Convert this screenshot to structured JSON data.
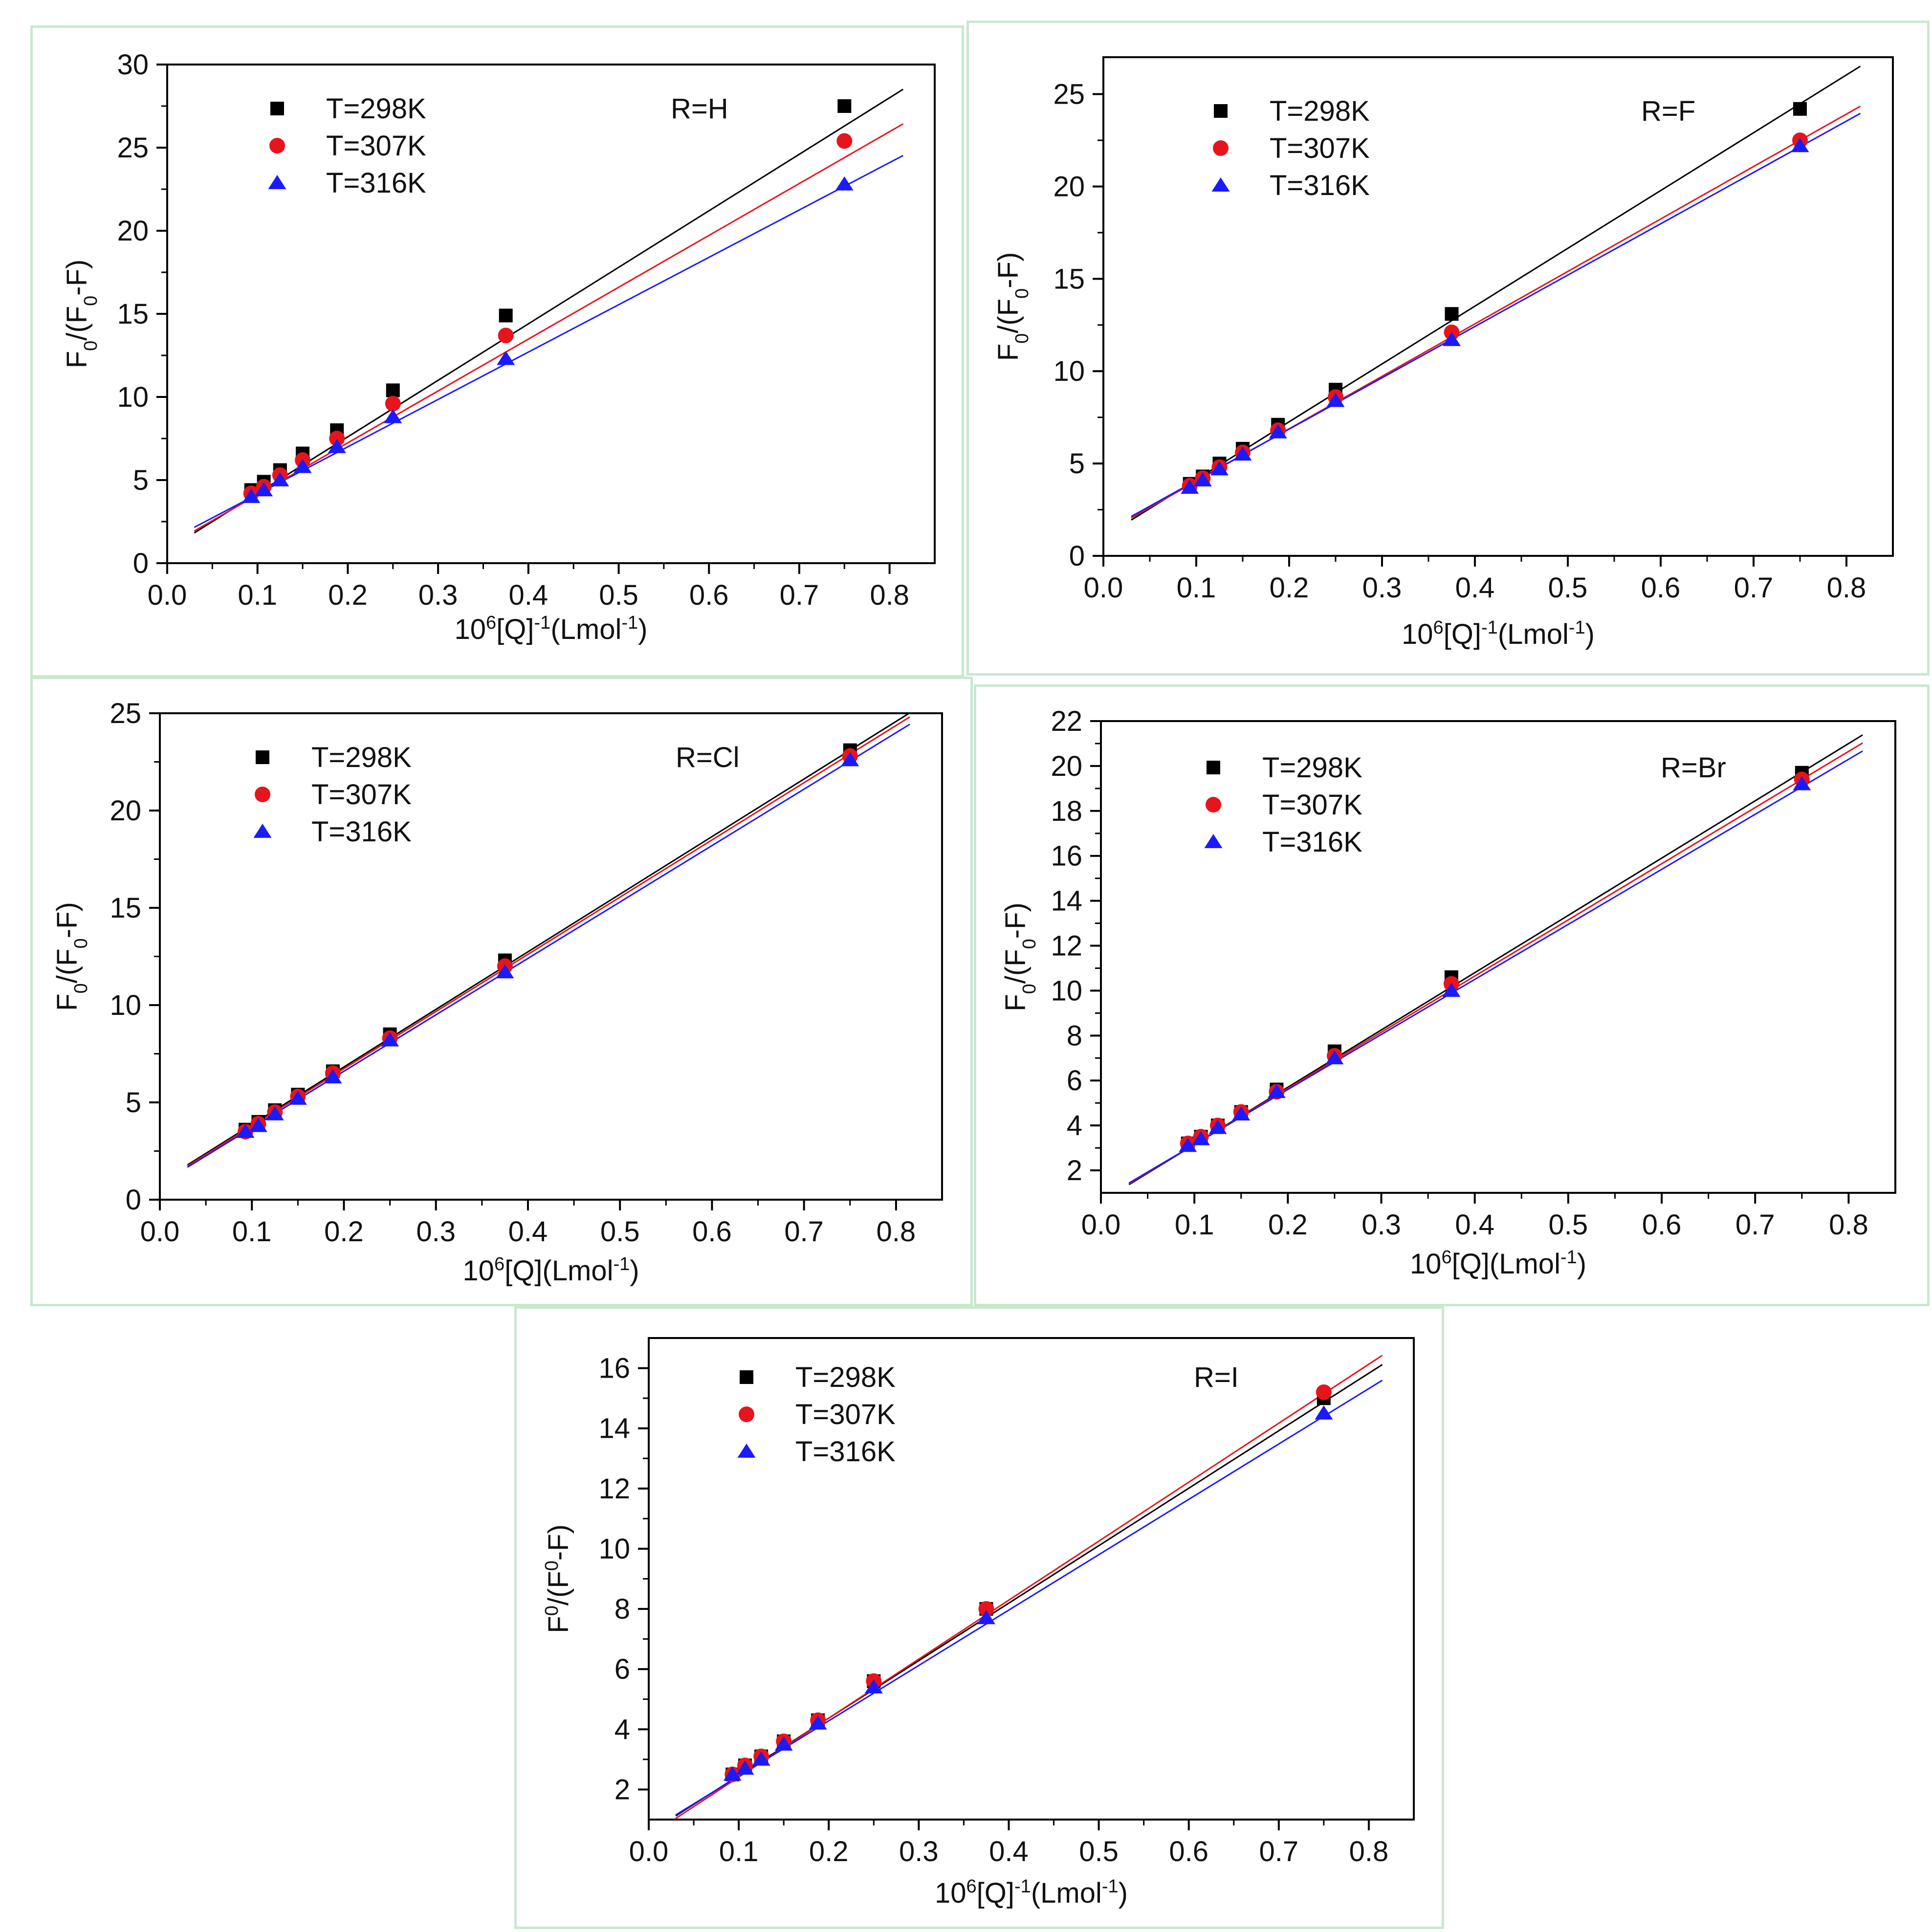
{
  "chart_data": [
    {
      "type": "scatter",
      "annotation": "R=H",
      "xlabel": "10⁶[Q]⁻¹(Lmol⁻¹)",
      "ylabel": "F₀/(F₀-F)",
      "xlim": [
        0,
        0.85
      ],
      "ylim": [
        0,
        30
      ],
      "xticks": [
        0.0,
        0.1,
        0.2,
        0.3,
        0.4,
        0.5,
        0.6,
        0.7,
        0.8
      ],
      "xticklabels": [
        "0.0",
        "0.1",
        "0.2",
        "0.3",
        "0.4",
        "0.5",
        "0.6",
        "0.7",
        "0.8"
      ],
      "yticks": [
        0,
        5,
        10,
        15,
        20,
        25,
        30
      ],
      "yticklabels": [
        "0",
        "5",
        "10",
        "15",
        "20",
        "25",
        "30"
      ],
      "x": [
        0.093,
        0.107,
        0.125,
        0.15,
        0.188,
        0.25,
        0.375,
        0.75
      ],
      "fit_range": [
        0.03,
        0.815
      ],
      "series": [
        {
          "name": "T=298K",
          "color": "#000000",
          "marker": "square",
          "values": [
            4.4,
            4.9,
            5.6,
            6.6,
            8.0,
            10.4,
            14.9,
            27.5
          ],
          "fit": [
            0.8,
            34.0
          ]
        },
        {
          "name": "T=307K",
          "color": "#e8141c",
          "marker": "circle",
          "values": [
            4.2,
            4.6,
            5.3,
            6.2,
            7.5,
            9.6,
            13.7,
            25.4
          ],
          "fit": [
            1.0,
            31.2
          ]
        },
        {
          "name": "T=316K",
          "color": "#1a1aff",
          "marker": "triangle",
          "values": [
            4.0,
            4.4,
            5.0,
            5.8,
            7.0,
            8.8,
            12.3,
            22.8
          ],
          "fit": [
            1.3,
            28.5
          ]
        }
      ]
    },
    {
      "type": "scatter",
      "annotation": "R=F",
      "xlabel": "10⁶[Q]⁻¹(Lmol⁻¹)",
      "ylabel": "F₀/(F₀-F)",
      "xlim": [
        0,
        0.85
      ],
      "ylim": [
        0,
        27
      ],
      "xticks": [
        0.0,
        0.1,
        0.2,
        0.3,
        0.4,
        0.5,
        0.6,
        0.7,
        0.8
      ],
      "xticklabels": [
        "0.0",
        "0.1",
        "0.2",
        "0.3",
        "0.4",
        "0.5",
        "0.6",
        "0.7",
        "0.8"
      ],
      "yticks": [
        0,
        5,
        10,
        15,
        20,
        25
      ],
      "yticklabels": [
        "0",
        "5",
        "10",
        "15",
        "20",
        "25"
      ],
      "x": [
        0.093,
        0.107,
        0.125,
        0.15,
        0.188,
        0.25,
        0.375,
        0.75
      ],
      "fit_range": [
        0.03,
        0.815
      ],
      "series": [
        {
          "name": "T=298K",
          "color": "#000000",
          "marker": "square",
          "values": [
            3.9,
            4.3,
            5.0,
            5.8,
            7.1,
            9.0,
            13.1,
            24.2
          ],
          "fit": [
            1.0,
            31.3
          ]
        },
        {
          "name": "T=307K",
          "color": "#e8141c",
          "marker": "circle",
          "values": [
            3.8,
            4.2,
            4.8,
            5.6,
            6.8,
            8.6,
            12.1,
            22.5
          ],
          "fit": [
            1.2,
            28.4
          ]
        },
        {
          "name": "T=316K",
          "color": "#1a1aff",
          "marker": "triangle",
          "values": [
            3.7,
            4.1,
            4.7,
            5.5,
            6.7,
            8.4,
            11.7,
            22.2
          ],
          "fit": [
            1.3,
            27.8
          ]
        }
      ]
    },
    {
      "type": "scatter",
      "annotation": "R=Cl",
      "xlabel": "10⁶[Q](Lmol⁻¹)",
      "ylabel": "F₀/(F₀-F)",
      "xlim": [
        0,
        0.85
      ],
      "ylim": [
        0,
        25
      ],
      "xticks": [
        0.0,
        0.1,
        0.2,
        0.3,
        0.4,
        0.5,
        0.6,
        0.7,
        0.8
      ],
      "xticklabels": [
        "0.0",
        "0.1",
        "0.2",
        "0.3",
        "0.4",
        "0.5",
        "0.6",
        "0.7",
        "0.8"
      ],
      "yticks": [
        0,
        5,
        10,
        15,
        20,
        25
      ],
      "yticklabels": [
        "0",
        "5",
        "10",
        "15",
        "20",
        "25"
      ],
      "x": [
        0.093,
        0.107,
        0.125,
        0.15,
        0.188,
        0.25,
        0.375,
        0.75
      ],
      "fit_range": [
        0.03,
        0.815
      ],
      "series": [
        {
          "name": "T=298K",
          "color": "#000000",
          "marker": "square",
          "values": [
            3.6,
            4.0,
            4.6,
            5.4,
            6.6,
            8.5,
            12.3,
            23.1
          ],
          "fit": [
            0.9,
            29.6
          ]
        },
        {
          "name": "T=307K",
          "color": "#e8141c",
          "marker": "circle",
          "values": [
            3.5,
            3.9,
            4.5,
            5.3,
            6.5,
            8.3,
            12.0,
            22.8
          ],
          "fit": [
            0.85,
            29.4
          ]
        },
        {
          "name": "T=316K",
          "color": "#1a1aff",
          "marker": "triangle",
          "values": [
            3.5,
            3.8,
            4.4,
            5.2,
            6.3,
            8.2,
            11.7,
            22.6
          ],
          "fit": [
            0.8,
            29.0
          ]
        }
      ]
    },
    {
      "type": "scatter",
      "annotation": "R=Br",
      "xlabel": "10⁶[Q](Lmol⁻¹)",
      "ylabel": "F₀/(F₀-F)",
      "xlim": [
        0,
        0.85
      ],
      "ylim": [
        1,
        22
      ],
      "xticks": [
        0.0,
        0.1,
        0.2,
        0.3,
        0.4,
        0.5,
        0.6,
        0.7,
        0.8
      ],
      "xticklabels": [
        "0.0",
        "0.1",
        "0.2",
        "0.3",
        "0.4",
        "0.5",
        "0.6",
        "0.7",
        "0.8"
      ],
      "yticks": [
        2,
        4,
        6,
        8,
        10,
        12,
        14,
        16,
        18,
        20,
        22
      ],
      "yticklabels": [
        "2",
        "4",
        "6",
        "8",
        "10",
        "12",
        "14",
        "16",
        "18",
        "20",
        "22"
      ],
      "x": [
        0.093,
        0.107,
        0.125,
        0.15,
        0.188,
        0.25,
        0.375,
        0.75
      ],
      "fit_range": [
        0.03,
        0.815
      ],
      "series": [
        {
          "name": "T=298K",
          "color": "#000000",
          "marker": "square",
          "values": [
            3.2,
            3.5,
            4.0,
            4.6,
            5.6,
            7.3,
            10.6,
            19.7
          ],
          "fit": [
            0.6,
            25.5
          ]
        },
        {
          "name": "T=307K",
          "color": "#e8141c",
          "marker": "circle",
          "values": [
            3.2,
            3.5,
            4.0,
            4.6,
            5.5,
            7.1,
            10.3,
            19.4
          ],
          "fit": [
            0.65,
            25.0
          ]
        },
        {
          "name": "T=316K",
          "color": "#1a1aff",
          "marker": "triangle",
          "values": [
            3.1,
            3.4,
            3.9,
            4.5,
            5.5,
            7.0,
            10.0,
            19.2
          ],
          "fit": [
            0.7,
            24.5
          ]
        }
      ]
    },
    {
      "type": "scatter",
      "annotation": "R=I",
      "xlabel": "10⁶[Q]⁻¹(Lmol⁻¹)",
      "ylabel": "F⁰/(F⁰-F)",
      "xlim": [
        0,
        0.85
      ],
      "ylim": [
        1,
        17
      ],
      "xticks": [
        0.0,
        0.1,
        0.2,
        0.3,
        0.4,
        0.5,
        0.6,
        0.7,
        0.8
      ],
      "xticklabels": [
        "0.0",
        "0.1",
        "0.2",
        "0.3",
        "0.4",
        "0.5",
        "0.6",
        "0.7",
        "0.8"
      ],
      "yticks": [
        2,
        4,
        6,
        8,
        10,
        12,
        14,
        16
      ],
      "yticklabels": [
        "2",
        "4",
        "6",
        "8",
        "10",
        "12",
        "14",
        "16"
      ],
      "x": [
        0.093,
        0.107,
        0.125,
        0.15,
        0.188,
        0.25,
        0.375,
        0.75
      ],
      "fit_range": [
        0.03,
        0.815
      ],
      "series": [
        {
          "name": "T=298K",
          "color": "#000000",
          "marker": "square",
          "values": [
            2.5,
            2.8,
            3.1,
            3.6,
            4.3,
            5.6,
            8.0,
            15.0
          ],
          "fit": [
            0.55,
            19.1
          ]
        },
        {
          "name": "T=307K",
          "color": "#e8141c",
          "marker": "circle",
          "values": [
            2.5,
            2.8,
            3.1,
            3.6,
            4.3,
            5.6,
            8.0,
            15.2
          ],
          "fit": [
            0.45,
            19.6
          ]
        },
        {
          "name": "T=316K",
          "color": "#1a1aff",
          "marker": "triangle",
          "values": [
            2.5,
            2.7,
            3.0,
            3.5,
            4.2,
            5.4,
            7.7,
            14.5
          ],
          "fit": [
            0.6,
            18.4
          ]
        }
      ]
    }
  ]
}
